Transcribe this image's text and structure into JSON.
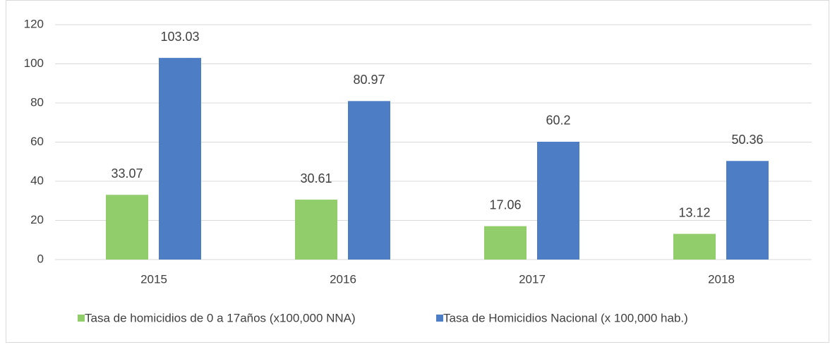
{
  "chart_data": {
    "type": "bar",
    "categories": [
      "2015",
      "2016",
      "2017",
      "2018"
    ],
    "series": [
      {
        "name": "Tasa de homicidios de 0 a 17años (x100,000 NNA)",
        "color": "#92cd6c",
        "values": [
          33.07,
          30.61,
          17.06,
          13.12
        ]
      },
      {
        "name": "Tasa de Homicidios Nacional (x 100,000 hab.)",
        "color": "#4d7ec5",
        "values": [
          103.03,
          80.97,
          60.2,
          50.36
        ]
      }
    ],
    "ylim": [
      0,
      120
    ],
    "yticks": [
      0,
      20,
      40,
      60,
      80,
      100,
      120
    ],
    "grid": true,
    "legend": "bottom"
  }
}
